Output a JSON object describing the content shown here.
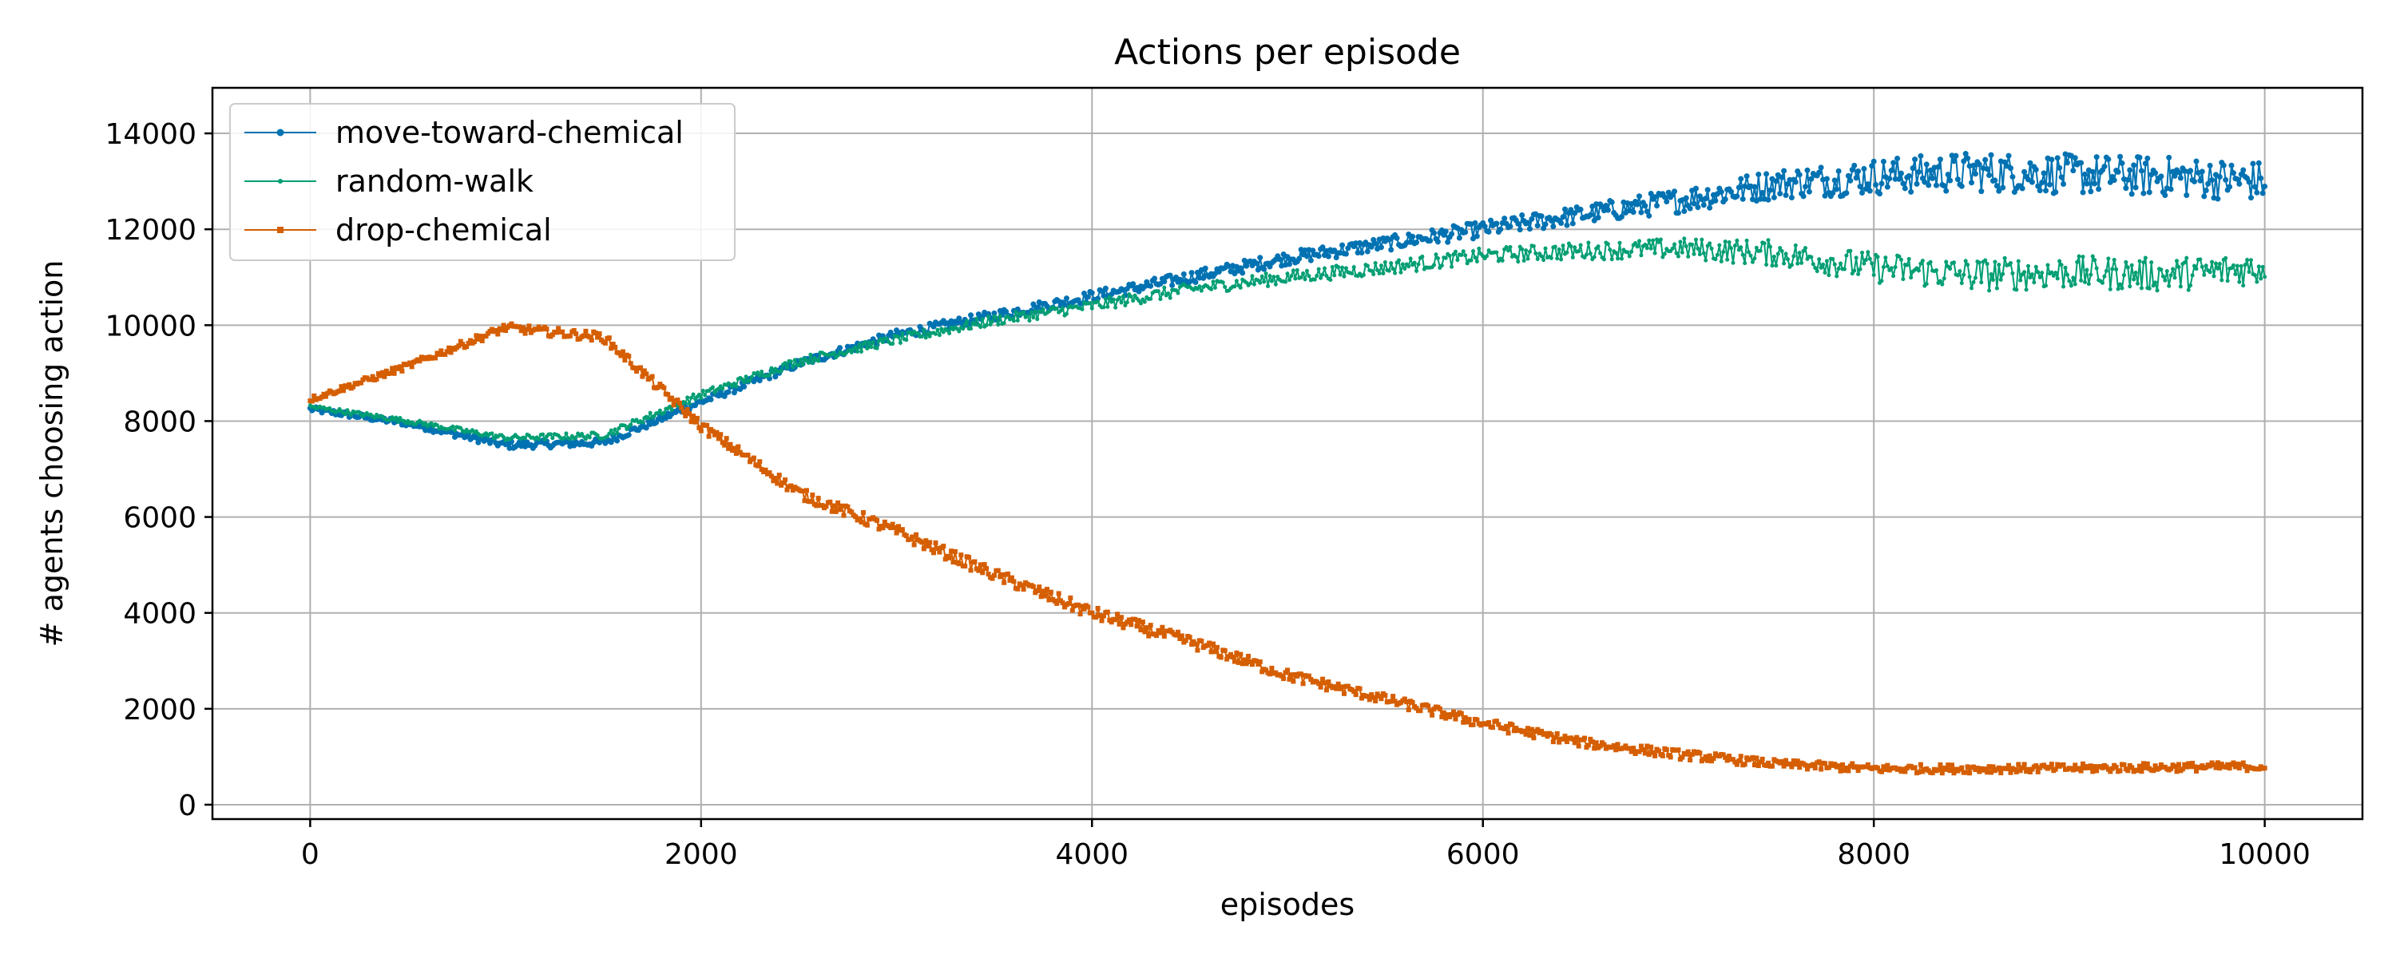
{
  "chart_data": {
    "type": "line",
    "title": "Actions per episode",
    "xlabel": "episodes",
    "ylabel": "# agents choosing action",
    "xlim": [
      -500,
      10500
    ],
    "ylim": [
      -300,
      14950
    ],
    "x_ticks": [
      0,
      2000,
      4000,
      6000,
      8000,
      10000
    ],
    "y_ticks": [
      0,
      2000,
      4000,
      6000,
      8000,
      10000,
      12000,
      14000
    ],
    "grid": true,
    "legend_position": "top-left",
    "x": [
      0,
      500,
      1000,
      1500,
      2000,
      2500,
      3000,
      3500,
      4000,
      4500,
      5000,
      5500,
      6000,
      6500,
      7000,
      7500,
      8000,
      8500,
      9000,
      9500,
      10000
    ],
    "series": [
      {
        "name": "move-toward-chemical",
        "color": "#0072b2",
        "marker": "circle",
        "values": [
          8250,
          7950,
          7500,
          7550,
          8400,
          9200,
          9800,
          10200,
          10600,
          11000,
          11400,
          11700,
          12000,
          12300,
          12600,
          12950,
          13100,
          13200,
          13150,
          13100,
          13000
        ],
        "noise": [
          60,
          60,
          80,
          80,
          80,
          90,
          100,
          110,
          120,
          130,
          140,
          150,
          170,
          200,
          260,
          320,
          380,
          420,
          420,
          420,
          420
        ]
      },
      {
        "name": "random-walk",
        "color": "#009e73",
        "marker": "point",
        "values": [
          8300,
          8000,
          7650,
          7700,
          8550,
          9250,
          9700,
          10100,
          10400,
          10750,
          11000,
          11200,
          11450,
          11550,
          11600,
          11500,
          11200,
          11050,
          11100,
          11050,
          11200
        ],
        "noise": [
          50,
          50,
          60,
          70,
          80,
          90,
          100,
          110,
          120,
          130,
          140,
          150,
          160,
          180,
          220,
          280,
          320,
          350,
          350,
          350,
          350
        ]
      },
      {
        "name": "drop-chemical",
        "color": "#d55e00",
        "marker": "square",
        "values": [
          8450,
          9150,
          9950,
          9750,
          7900,
          6500,
          5700,
          4800,
          4000,
          3400,
          2700,
          2200,
          1700,
          1300,
          1050,
          850,
          750,
          750,
          760,
          780,
          800
        ],
        "noise": [
          60,
          70,
          90,
          100,
          110,
          120,
          130,
          130,
          140,
          130,
          120,
          110,
          110,
          100,
          100,
          90,
          90,
          90,
          90,
          90,
          90
        ]
      }
    ]
  }
}
